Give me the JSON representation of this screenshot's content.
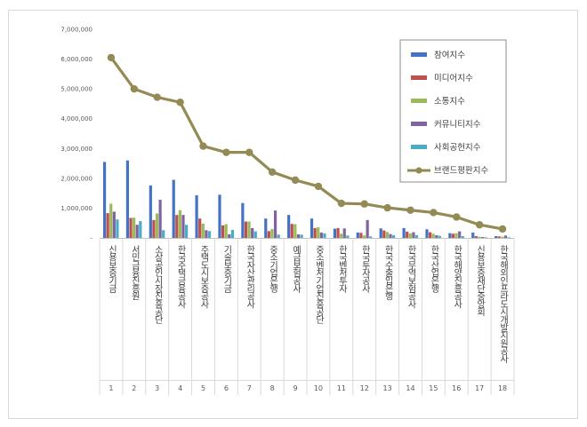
{
  "chart_data": {
    "type": "bar",
    "categories": [
      "신용보증기금",
      "서민금융진흥원",
      "소상공인시장진흥공단",
      "한국주택금융공사",
      "주택도시보증공사",
      "기술보증기금",
      "한국자산관리공사",
      "중소기업은행",
      "예금보험공사",
      "중소벤처기업진흥공단",
      "한국벤처투자",
      "한국투자공사",
      "한국수출입은행",
      "한국무역보험공사",
      "한국산업은행",
      "한국해양진흥공사",
      "신용보증재단중앙회",
      "한국해외인프라도시개발지원공사"
    ],
    "rank_labels": [
      "1",
      "2",
      "3",
      "4",
      "5",
      "6",
      "7",
      "8",
      "9",
      "10",
      "11",
      "12",
      "13",
      "14",
      "15",
      "16",
      "17",
      "18"
    ],
    "series": [
      {
        "name": "참여지수",
        "color": "#4472c4",
        "values": [
          2550000,
          2600000,
          1760000,
          1950000,
          1430000,
          1450000,
          1170000,
          650000,
          770000,
          650000,
          310000,
          180000,
          320000,
          330000,
          290000,
          160000,
          180000,
          60000
        ]
      },
      {
        "name": "미디어지수",
        "color": "#c0504d",
        "values": [
          830000,
          670000,
          600000,
          770000,
          650000,
          420000,
          550000,
          230000,
          470000,
          330000,
          330000,
          170000,
          250000,
          210000,
          190000,
          140000,
          60000,
          50000
        ]
      },
      {
        "name": "소통지수",
        "color": "#9bbb59",
        "values": [
          1150000,
          680000,
          820000,
          930000,
          480000,
          460000,
          550000,
          300000,
          460000,
          360000,
          140000,
          80000,
          200000,
          150000,
          140000,
          160000,
          40000,
          40000
        ]
      },
      {
        "name": "커뮤니티지수",
        "color": "#8064a2",
        "values": [
          880000,
          440000,
          1280000,
          770000,
          260000,
          120000,
          330000,
          920000,
          120000,
          180000,
          320000,
          600000,
          130000,
          190000,
          90000,
          220000,
          30000,
          80000
        ]
      },
      {
        "name": "사회공헌지수",
        "color": "#4bacc6",
        "values": [
          620000,
          560000,
          260000,
          440000,
          230000,
          270000,
          220000,
          110000,
          110000,
          150000,
          80000,
          50000,
          90000,
          90000,
          70000,
          60000,
          20000,
          20000
        ]
      }
    ],
    "line_series": {
      "name": "브랜드평판지수",
      "color": "#948a54",
      "values": [
        6050000,
        5000000,
        4720000,
        4550000,
        3080000,
        2870000,
        2870000,
        2210000,
        1940000,
        1730000,
        1160000,
        1140000,
        1010000,
        930000,
        850000,
        700000,
        440000,
        300000
      ]
    },
    "yticks": [
      "7,000,000",
      "6,000,000",
      "5,000,000",
      "4,000,000",
      "3,000,000",
      "2,000,000",
      "1,000,000",
      "-"
    ],
    "ylim": [
      0,
      7000000
    ],
    "legend_position": "top-right",
    "grid": false
  }
}
